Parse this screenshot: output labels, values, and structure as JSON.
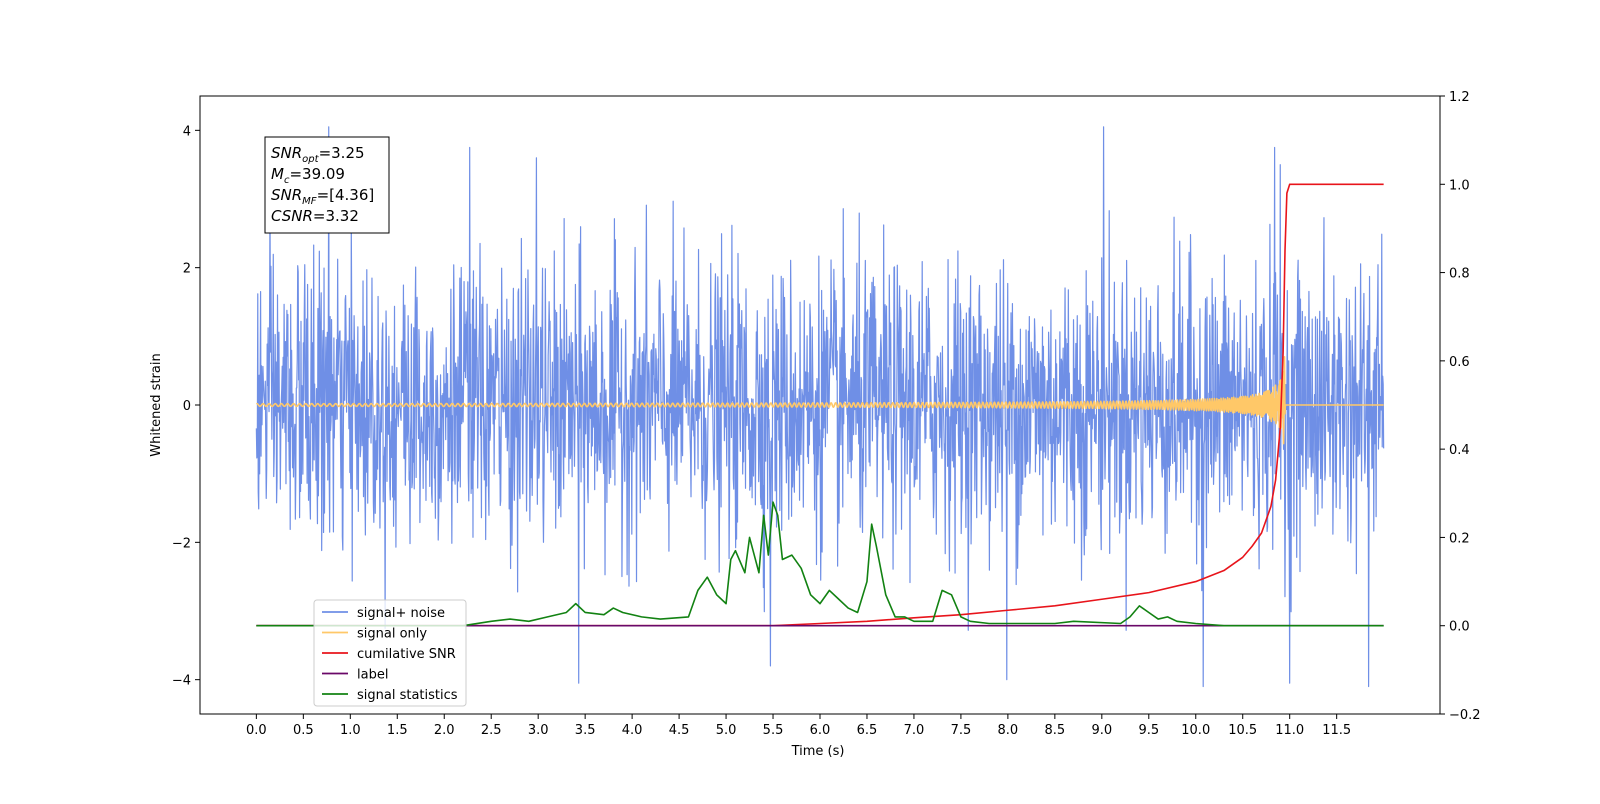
{
  "chart_data": {
    "type": "line",
    "xlabel": "Time (s)",
    "ylabel": "Whitened strain",
    "xlim": [
      -0.6,
      12.6
    ],
    "ylim": [
      -4.5,
      4.5
    ],
    "y2lim": [
      -0.2,
      1.2
    ],
    "x_ticks": [
      0.0,
      0.5,
      1.0,
      1.5,
      2.0,
      2.5,
      3.0,
      3.5,
      4.0,
      4.5,
      5.0,
      5.5,
      6.0,
      6.5,
      7.0,
      7.5,
      8.0,
      8.5,
      9.0,
      9.5,
      10.0,
      10.5,
      11.0,
      11.5
    ],
    "x_tick_labels": [
      "0.0",
      "0.5",
      "1.0",
      "1.5",
      "2.0",
      "2.5",
      "3.0",
      "3.5",
      "4.0",
      "4.5",
      "5.0",
      "5.5",
      "6.0",
      "6.5",
      "7.0",
      "7.5",
      "8.0",
      "8.5",
      "9.0",
      "9.5",
      "10.0",
      "10.5",
      "11.0",
      "11.5"
    ],
    "y_ticks": [
      -4,
      -2,
      0,
      2,
      4
    ],
    "y_tick_labels": [
      "−4",
      "−2",
      "0",
      "2",
      "4"
    ],
    "y2_ticks": [
      -0.2,
      0.0,
      0.2,
      0.4,
      0.6,
      0.8,
      1.0,
      1.2
    ],
    "y2_tick_labels": [
      "−0.2",
      "0.0",
      "0.2",
      "0.4",
      "0.6",
      "0.8",
      "1.0",
      "1.2"
    ],
    "grid": false,
    "legend_position": "bottom-left",
    "legend": [
      {
        "label": "signal+ noise",
        "color": "#6f8fe6"
      },
      {
        "label": "signal only",
        "color": "#ffc868"
      },
      {
        "label": "cumilative SNR",
        "color": "#e8141b"
      },
      {
        "label": "label",
        "color": "#6a0868"
      },
      {
        "label": "signal statistics",
        "color": "#128212"
      }
    ],
    "stats_box": [
      {
        "base": "SNR",
        "sub": "opt",
        "value": "=3.25"
      },
      {
        "base": "M",
        "sub": "c",
        "value": "=39.09"
      },
      {
        "base": "SNR",
        "sub": "MF",
        "value": "=[4.36]"
      },
      {
        "base": "CSNR",
        "sub": "",
        "value": "=3.32"
      }
    ],
    "series": [
      {
        "name": "signal+ noise",
        "axis": "left",
        "color": "#6f8fe6",
        "x_range": [
          0.0,
          12.0
        ],
        "noise_std": 1.0,
        "y_min": -4.1,
        "y_max": 4.1,
        "peaks": [
          {
            "x": 0.77,
            "y": 4.05
          },
          {
            "x": 9.02,
            "y": 4.05
          },
          {
            "x": 10.84,
            "y": 3.75
          },
          {
            "x": 2.27,
            "y": 3.75
          },
          {
            "x": 2.98,
            "y": 3.6
          },
          {
            "x": 10.9,
            "y": 3.5
          },
          {
            "x": 3.43,
            "y": -4.05
          },
          {
            "x": 7.99,
            "y": -4.0
          },
          {
            "x": 10.08,
            "y": -4.1
          },
          {
            "x": 11.0,
            "y": -4.05
          },
          {
            "x": 11.84,
            "y": -4.1
          },
          {
            "x": 5.47,
            "y": -3.8
          }
        ]
      },
      {
        "name": "signal only",
        "axis": "left",
        "color": "#ffc868",
        "x_range": [
          0.0,
          12.0
        ],
        "merger_time": 10.95,
        "peak_amplitude": 0.85
      },
      {
        "name": "cumilative SNR",
        "axis": "right",
        "color": "#e8141b",
        "x": [
          0.0,
          5.5,
          6.0,
          6.5,
          7.0,
          7.5,
          8.0,
          8.5,
          9.0,
          9.5,
          10.0,
          10.3,
          10.5,
          10.6,
          10.7,
          10.8,
          10.85,
          10.9,
          10.93,
          10.95,
          10.97,
          11.0,
          11.5,
          12.0
        ],
        "y": [
          0.0,
          0.0,
          0.005,
          0.01,
          0.018,
          0.025,
          0.035,
          0.045,
          0.06,
          0.075,
          0.1,
          0.125,
          0.155,
          0.18,
          0.21,
          0.27,
          0.33,
          0.45,
          0.62,
          0.85,
          0.98,
          1.0,
          1.0,
          1.0
        ]
      },
      {
        "name": "label",
        "axis": "right",
        "color": "#6a0868",
        "x": [
          0.0,
          12.0
        ],
        "y": [
          0.0,
          0.0
        ]
      },
      {
        "name": "signal statistics",
        "axis": "right",
        "color": "#128212",
        "x": [
          0.0,
          0.3,
          2.2,
          2.5,
          2.7,
          2.9,
          3.1,
          3.3,
          3.4,
          3.5,
          3.7,
          3.8,
          3.9,
          4.1,
          4.3,
          4.6,
          4.7,
          4.8,
          4.9,
          5.0,
          5.05,
          5.1,
          5.2,
          5.25,
          5.3,
          5.35,
          5.4,
          5.45,
          5.5,
          5.55,
          5.6,
          5.7,
          5.8,
          5.9,
          6.0,
          6.1,
          6.2,
          6.3,
          6.4,
          6.5,
          6.55,
          6.6,
          6.7,
          6.8,
          6.9,
          7.0,
          7.2,
          7.3,
          7.4,
          7.5,
          7.6,
          7.8,
          8.5,
          8.7,
          9.2,
          9.3,
          9.4,
          9.5,
          9.6,
          9.7,
          9.8,
          10.0,
          10.3,
          12.0
        ],
        "y": [
          0.0,
          0.0,
          0.0,
          0.01,
          0.015,
          0.01,
          0.02,
          0.03,
          0.05,
          0.03,
          0.025,
          0.04,
          0.03,
          0.02,
          0.015,
          0.02,
          0.08,
          0.11,
          0.07,
          0.05,
          0.15,
          0.17,
          0.12,
          0.2,
          0.16,
          0.12,
          0.25,
          0.16,
          0.28,
          0.25,
          0.15,
          0.16,
          0.13,
          0.07,
          0.05,
          0.08,
          0.06,
          0.04,
          0.03,
          0.1,
          0.23,
          0.18,
          0.07,
          0.02,
          0.02,
          0.01,
          0.01,
          0.08,
          0.07,
          0.02,
          0.01,
          0.005,
          0.005,
          0.01,
          0.005,
          0.02,
          0.045,
          0.03,
          0.015,
          0.02,
          0.01,
          0.005,
          0.0,
          0.0
        ]
      }
    ]
  }
}
